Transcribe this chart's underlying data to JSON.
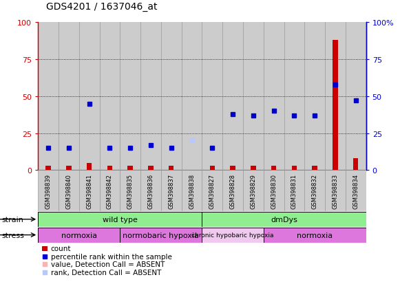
{
  "title": "GDS4201 / 1637046_at",
  "samples": [
    "GSM398839",
    "GSM398840",
    "GSM398841",
    "GSM398842",
    "GSM398835",
    "GSM398836",
    "GSM398837",
    "GSM398838",
    "GSM398827",
    "GSM398828",
    "GSM398829",
    "GSM398830",
    "GSM398831",
    "GSM398832",
    "GSM398833",
    "GSM398834"
  ],
  "count_values": [
    3,
    3,
    5,
    3,
    3,
    3,
    3,
    0,
    3,
    3,
    3,
    3,
    3,
    3,
    88,
    8
  ],
  "count_absent": [
    false,
    false,
    false,
    false,
    false,
    false,
    false,
    true,
    false,
    false,
    false,
    false,
    false,
    false,
    false,
    false
  ],
  "rank_values": [
    15,
    15,
    45,
    15,
    15,
    17,
    15,
    20,
    15,
    38,
    37,
    40,
    37,
    37,
    58,
    47
  ],
  "rank_absent": [
    false,
    false,
    false,
    false,
    false,
    false,
    false,
    true,
    false,
    false,
    false,
    false,
    false,
    false,
    false,
    false
  ],
  "strain_groups": [
    {
      "label": "wild type",
      "start": 0,
      "end": 8,
      "color": "#90ee90"
    },
    {
      "label": "dmDys",
      "start": 8,
      "end": 16,
      "color": "#90ee90"
    }
  ],
  "stress_groups": [
    {
      "label": "normoxia",
      "start": 0,
      "end": 4,
      "color": "#dd77dd",
      "faded": false
    },
    {
      "label": "normobaric hypoxia",
      "start": 4,
      "end": 8,
      "color": "#dd77dd",
      "faded": false
    },
    {
      "label": "chronic hypobaric hypoxia",
      "start": 8,
      "end": 11,
      "color": "#f0c8f0",
      "faded": true
    },
    {
      "label": "normoxia",
      "start": 11,
      "end": 16,
      "color": "#dd77dd",
      "faded": false
    }
  ],
  "ylim": [
    0,
    100
  ],
  "grid_lines": [
    25,
    50,
    75
  ],
  "count_color": "#cc0000",
  "rank_color": "#0000cc",
  "count_absent_color": "#ffb0b0",
  "rank_absent_color": "#b8c8ff",
  "col_bg_color": "#cccccc",
  "col_border_color": "#999999",
  "left_axis_color": "#cc0000",
  "right_axis_color": "#0000cc",
  "plot_bg": "#ffffff"
}
